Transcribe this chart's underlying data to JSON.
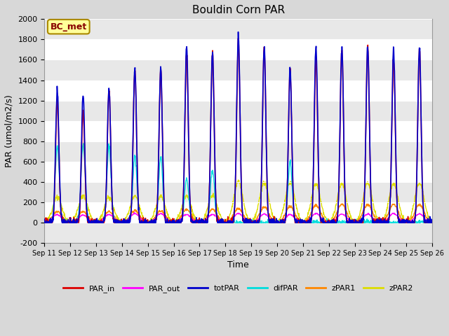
{
  "title": "Bouldin Corn PAR",
  "xlabel": "Time",
  "ylabel": "PAR (umol/m2/s)",
  "ylim": [
    -200,
    2000
  ],
  "annotation": "BC_met",
  "fig_facecolor": "#d8d8d8",
  "plot_facecolor": "#ffffff",
  "tick_labels": [
    "Sep 11",
    "Sep 12",
    "Sep 13",
    "Sep 14",
    "Sep 15",
    "Sep 16",
    "Sep 17",
    "Sep 18",
    "Sep 19",
    "Sep 20",
    "Sep 21",
    "Sep 22",
    "Sep 23",
    "Sep 24",
    "Sep 25",
    "Sep 26"
  ],
  "yticks": [
    -200,
    0,
    200,
    400,
    600,
    800,
    1000,
    1200,
    1400,
    1600,
    1800,
    2000
  ],
  "series_colors": {
    "PAR_in": "#dd0000",
    "PAR_out": "#ff00ff",
    "totPAR": "#0000cc",
    "difPAR": "#00dddd",
    "zPAR1": "#ff8800",
    "zPAR2": "#dddd00"
  },
  "tot_peaks": [
    1300,
    1270,
    1320,
    1520,
    1520,
    1730,
    1670,
    1850,
    1720,
    1510,
    1730,
    1720,
    1730,
    1700,
    1720
  ],
  "in_peaks": [
    1200,
    1090,
    1310,
    1500,
    1500,
    1650,
    1660,
    1780,
    1710,
    1490,
    1600,
    1710,
    1710,
    1620,
    1700
  ],
  "out_peaks": [
    80,
    75,
    80,
    90,
    90,
    80,
    80,
    90,
    85,
    80,
    90,
    85,
    85,
    90,
    85
  ],
  "dif_peaks": [
    750,
    770,
    760,
    650,
    640,
    450,
    510,
    0,
    0,
    600,
    0,
    0,
    0,
    0,
    0
  ],
  "z1_peaks": [
    110,
    110,
    110,
    120,
    120,
    130,
    130,
    140,
    150,
    160,
    170,
    180,
    180,
    180,
    175
  ],
  "z2_peaks": [
    250,
    265,
    250,
    260,
    260,
    260,
    270,
    400,
    390,
    400,
    380,
    380,
    390,
    380,
    390
  ],
  "n_per_day": 96,
  "n_days": 15
}
